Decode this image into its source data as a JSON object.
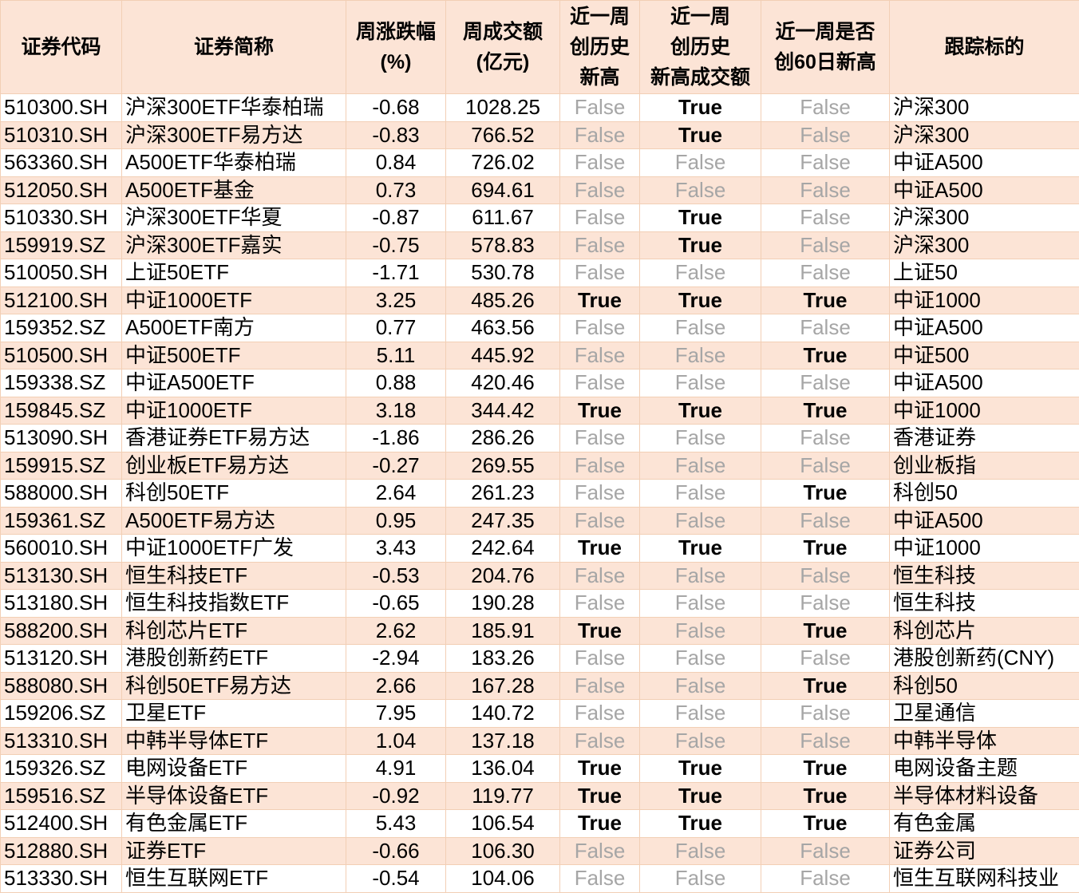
{
  "headers": [
    "证券代码",
    "证券简称",
    "周涨跌幅\n(%)",
    "周成交额\n(亿元)",
    "近一周\n创历史\n新高",
    "近一周\n创历史\n新高成交额",
    "近一周是否\n创60日新高",
    "跟踪标的"
  ],
  "rows": [
    [
      "510300.SH",
      "沪深300ETF华泰柏瑞",
      "-0.68",
      "1028.25",
      "False",
      "True",
      "False",
      "沪深300"
    ],
    [
      "510310.SH",
      "沪深300ETF易方达",
      "-0.83",
      "766.52",
      "False",
      "True",
      "False",
      "沪深300"
    ],
    [
      "563360.SH",
      "A500ETF华泰柏瑞",
      "0.84",
      "726.02",
      "False",
      "False",
      "False",
      "中证A500"
    ],
    [
      "512050.SH",
      "A500ETF基金",
      "0.73",
      "694.61",
      "False",
      "False",
      "False",
      "中证A500"
    ],
    [
      "510330.SH",
      "沪深300ETF华夏",
      "-0.87",
      "611.67",
      "False",
      "True",
      "False",
      "沪深300"
    ],
    [
      "159919.SZ",
      "沪深300ETF嘉实",
      "-0.75",
      "578.83",
      "False",
      "True",
      "False",
      "沪深300"
    ],
    [
      "510050.SH",
      "上证50ETF",
      "-1.71",
      "530.78",
      "False",
      "False",
      "False",
      "上证50"
    ],
    [
      "512100.SH",
      "中证1000ETF",
      "3.25",
      "485.26",
      "True",
      "True",
      "True",
      "中证1000"
    ],
    [
      "159352.SZ",
      "A500ETF南方",
      "0.77",
      "463.56",
      "False",
      "False",
      "False",
      "中证A500"
    ],
    [
      "510500.SH",
      "中证500ETF",
      "5.11",
      "445.92",
      "False",
      "False",
      "True",
      "中证500"
    ],
    [
      "159338.SZ",
      "中证A500ETF",
      "0.88",
      "420.46",
      "False",
      "False",
      "False",
      "中证A500"
    ],
    [
      "159845.SZ",
      "中证1000ETF",
      "3.18",
      "344.42",
      "True",
      "True",
      "True",
      "中证1000"
    ],
    [
      "513090.SH",
      "香港证券ETF易方达",
      "-1.86",
      "286.26",
      "False",
      "False",
      "False",
      "香港证券"
    ],
    [
      "159915.SZ",
      "创业板ETF易方达",
      "-0.27",
      "269.55",
      "False",
      "False",
      "False",
      "创业板指"
    ],
    [
      "588000.SH",
      "科创50ETF",
      "2.64",
      "261.23",
      "False",
      "False",
      "True",
      "科创50"
    ],
    [
      "159361.SZ",
      "A500ETF易方达",
      "0.95",
      "247.35",
      "False",
      "False",
      "False",
      "中证A500"
    ],
    [
      "560010.SH",
      "中证1000ETF广发",
      "3.43",
      "242.64",
      "True",
      "True",
      "True",
      "中证1000"
    ],
    [
      "513130.SH",
      "恒生科技ETF",
      "-0.53",
      "204.76",
      "False",
      "False",
      "False",
      "恒生科技"
    ],
    [
      "513180.SH",
      "恒生科技指数ETF",
      "-0.65",
      "190.28",
      "False",
      "False",
      "False",
      "恒生科技"
    ],
    [
      "588200.SH",
      "科创芯片ETF",
      "2.62",
      "185.91",
      "True",
      "False",
      "True",
      "科创芯片"
    ],
    [
      "513120.SH",
      "港股创新药ETF",
      "-2.94",
      "183.26",
      "False",
      "False",
      "False",
      "港股创新药(CNY)"
    ],
    [
      "588080.SH",
      "科创50ETF易方达",
      "2.66",
      "167.28",
      "False",
      "False",
      "True",
      "科创50"
    ],
    [
      "159206.SZ",
      "卫星ETF",
      "7.95",
      "140.72",
      "False",
      "False",
      "False",
      "卫星通信"
    ],
    [
      "513310.SH",
      "中韩半导体ETF",
      "1.04",
      "137.18",
      "False",
      "False",
      "False",
      "中韩半导体"
    ],
    [
      "159326.SZ",
      "电网设备ETF",
      "4.91",
      "136.04",
      "True",
      "True",
      "True",
      "电网设备主题"
    ],
    [
      "159516.SZ",
      "半导体设备ETF",
      "-0.92",
      "119.77",
      "True",
      "True",
      "True",
      "半导体材料设备"
    ],
    [
      "512400.SH",
      "有色金属ETF",
      "5.43",
      "106.54",
      "True",
      "True",
      "True",
      "有色金属"
    ],
    [
      "512880.SH",
      "证券ETF",
      "-0.66",
      "106.30",
      "False",
      "False",
      "False",
      "证券公司"
    ],
    [
      "513330.SH",
      "恒生互联网ETF",
      "-0.54",
      "104.06",
      "False",
      "False",
      "False",
      "恒生互联网科技业"
    ]
  ],
  "colors": {
    "header_bg": "#FCE4D6",
    "false_text": "#A6A6A6",
    "true_text": "#000000"
  }
}
